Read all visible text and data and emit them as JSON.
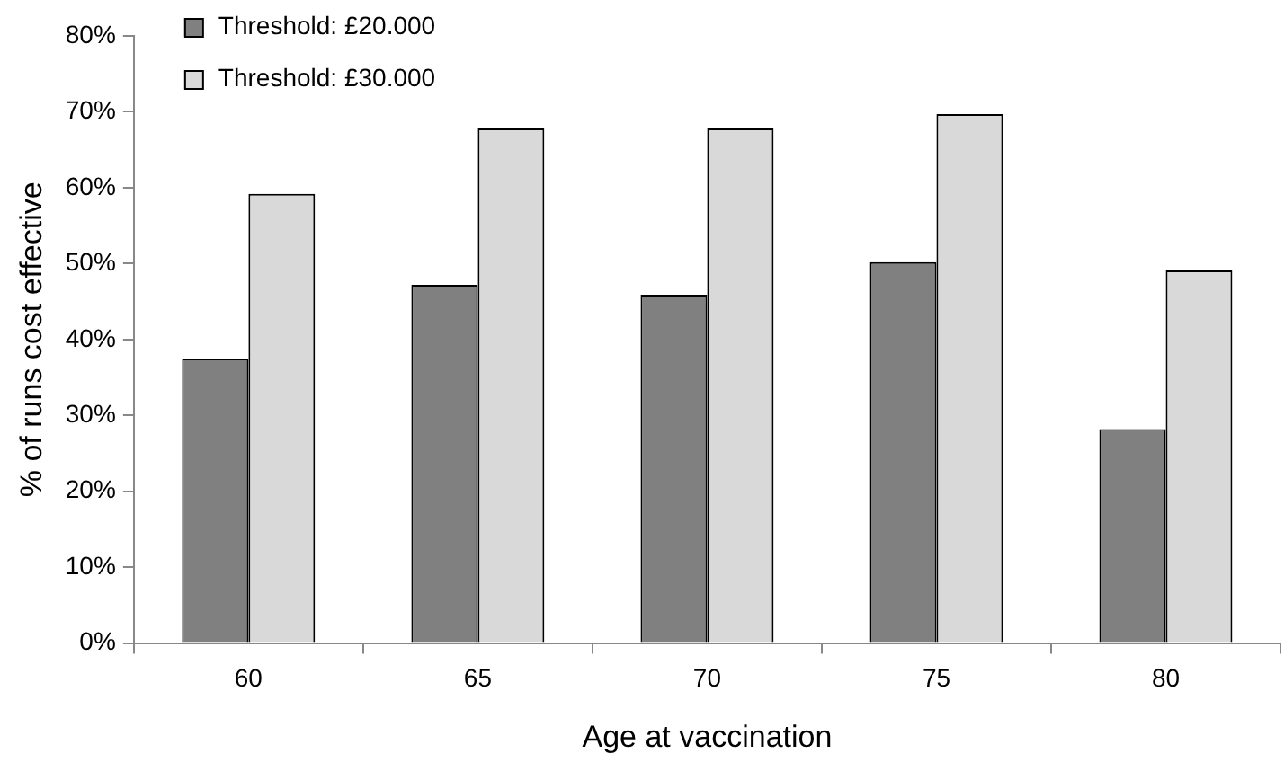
{
  "chart_data": {
    "type": "bar",
    "xlabel": "Age at vaccination",
    "ylabel": "% of runs cost effective",
    "categories": [
      "60",
      "65",
      "70",
      "75",
      "80"
    ],
    "series": [
      {
        "name": "Threshold: £20.000",
        "color": "#808080",
        "values": [
          37.5,
          47.2,
          45.9,
          50.2,
          28.2
        ]
      },
      {
        "name": "Threshold: £30.000",
        "color": "#d9d9d9",
        "values": [
          59.2,
          67.8,
          67.8,
          69.7,
          49.1
        ]
      }
    ],
    "ylim": [
      0,
      80
    ],
    "yticks": [
      {
        "value": 0,
        "label": "0%"
      },
      {
        "value": 10,
        "label": "10%"
      },
      {
        "value": 20,
        "label": "20%"
      },
      {
        "value": 30,
        "label": "30%"
      },
      {
        "value": 40,
        "label": "40%"
      },
      {
        "value": 50,
        "label": "50%"
      },
      {
        "value": 60,
        "label": "60%"
      },
      {
        "value": 70,
        "label": "70%"
      },
      {
        "value": 80,
        "label": "80%"
      }
    ],
    "legend": "top left"
  }
}
